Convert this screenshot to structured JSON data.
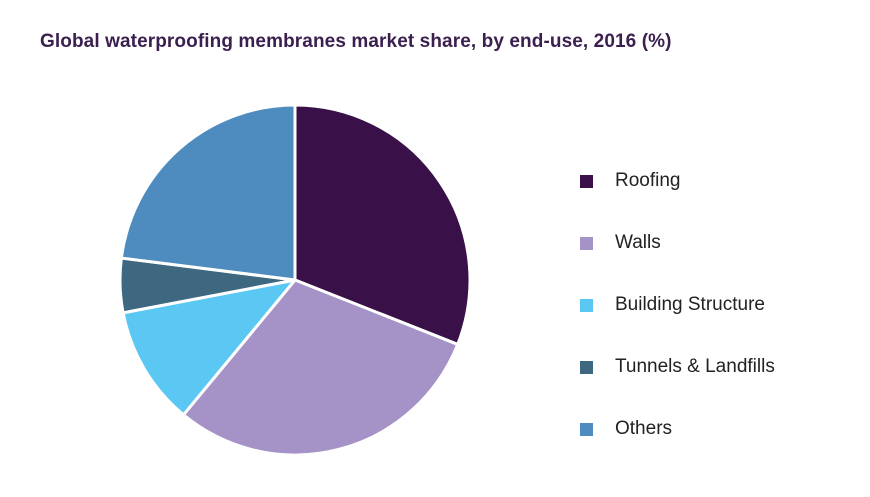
{
  "chart_data": {
    "type": "pie",
    "title": "Global waterproofing membranes market share, by end-use, 2016 (%)",
    "categories": [
      "Roofing",
      "Walls",
      "Building Structure",
      "Tunnels & Landfills",
      "Others"
    ],
    "values": [
      31,
      30,
      11,
      5,
      23
    ],
    "colors": [
      "#3a1049",
      "#a592c6",
      "#5bc8f3",
      "#3e6780",
      "#4e8bbf"
    ],
    "start_angle_deg": 0,
    "direction": "clockwise",
    "legend_position": "right"
  }
}
